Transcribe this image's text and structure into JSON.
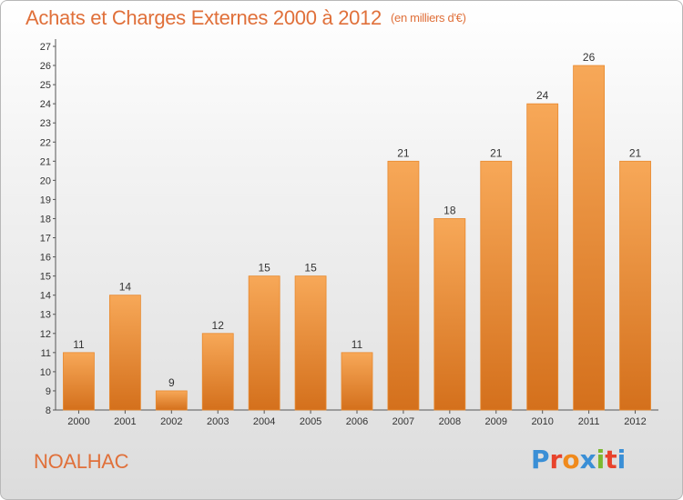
{
  "header": {
    "title": "Achats et Charges Externes 2000 à 2012",
    "unit": "(en milliers d'€)"
  },
  "footer": {
    "commune": "NOALHAC",
    "logo_text": "Proxiti",
    "logo_colors": [
      "#3a8fd6",
      "#e8432c",
      "#f08a1c",
      "#3a8fd6",
      "#7cb82f",
      "#e8432c",
      "#3a8fd6"
    ]
  },
  "colors": {
    "accent": "#e0703a",
    "bar_top": "#f7a858",
    "bar_bottom": "#d4701c",
    "bar_stroke": "#e8892e"
  },
  "chart_data": {
    "type": "bar",
    "title": "Achats et Charges Externes 2000 à 2012",
    "subtitle": "(en milliers d'€)",
    "categories": [
      "2000",
      "2001",
      "2002",
      "2003",
      "2004",
      "2005",
      "2006",
      "2007",
      "2008",
      "2009",
      "2010",
      "2011",
      "2012"
    ],
    "values": [
      11,
      14,
      9,
      12,
      15,
      15,
      11,
      21,
      18,
      21,
      24,
      26,
      21
    ],
    "ylim": [
      8,
      27
    ],
    "yticks": [
      8,
      9,
      10,
      11,
      12,
      13,
      14,
      15,
      16,
      17,
      18,
      19,
      20,
      21,
      22,
      23,
      24,
      25,
      26,
      27
    ],
    "grid": false,
    "legend": "none"
  }
}
